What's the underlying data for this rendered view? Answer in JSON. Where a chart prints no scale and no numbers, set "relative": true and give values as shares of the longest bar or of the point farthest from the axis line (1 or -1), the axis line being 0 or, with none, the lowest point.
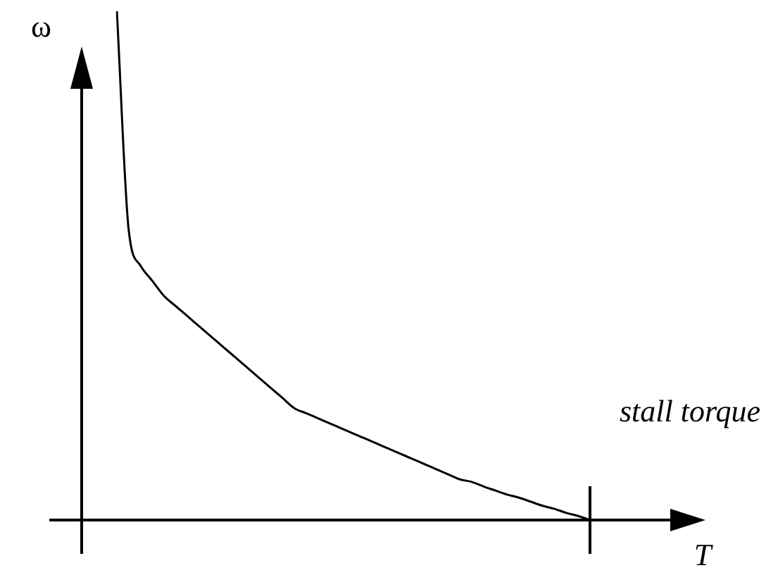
{
  "chart_data": {
    "type": "line",
    "relative": true,
    "xlabel": "T",
    "ylabel": "ω",
    "annotations": [
      "stall torque"
    ],
    "color": "#000000",
    "categories": [
      null,
      null,
      null,
      null,
      null,
      null,
      null,
      null,
      null,
      null,
      null,
      null,
      null,
      null,
      null,
      null,
      null,
      null,
      null,
      null,
      null,
      null,
      null,
      null,
      null,
      null,
      null,
      null,
      null,
      null,
      null,
      null,
      null,
      null,
      null,
      null,
      null,
      null,
      null,
      null,
      null
    ],
    "values": [
      1.0,
      0.57,
      0.5,
      0.47,
      0.44,
      0.42,
      0.4,
      0.38,
      0.36,
      0.34,
      0.32,
      0.3,
      0.28,
      0.26,
      0.24,
      0.22,
      0.21,
      0.2,
      0.19,
      0.18,
      0.17,
      0.16,
      0.15,
      0.14,
      0.13,
      0.12,
      0.11,
      0.1,
      0.09,
      0.08,
      0.075,
      0.066,
      0.058,
      0.05,
      0.044,
      0.036,
      0.028,
      0.022,
      0.014,
      0.008,
      0
    ]
  }
}
